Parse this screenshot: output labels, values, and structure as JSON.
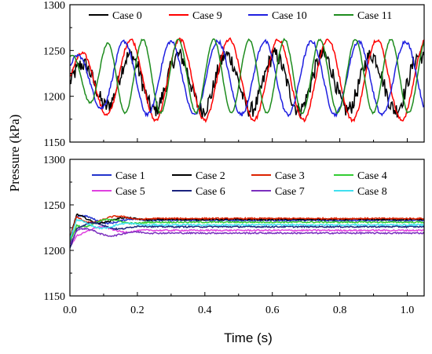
{
  "chart_data": [
    {
      "type": "line",
      "panel": "top",
      "ylabel": "Pressure (kPa)",
      "xlabel": "",
      "xlim": [
        0.0,
        1.05
      ],
      "ylim": [
        1150,
        1300
      ],
      "yticks": [
        1150,
        1200,
        1250,
        1300
      ],
      "xticks": [],
      "legend_position": "top",
      "grid": false,
      "series": [
        {
          "name": "Case 0",
          "color": "#000000",
          "mean": 1215,
          "amp": 30,
          "period": 0.143,
          "phase": 0.0,
          "noise": 9
        },
        {
          "name": "Case 9",
          "color": "#ff0000",
          "mean": 1218,
          "amp": 44,
          "period": 0.146,
          "phase": 0.1,
          "noise": 2
        },
        {
          "name": "Case 10",
          "color": "#1f1fe0",
          "mean": 1220,
          "amp": 40,
          "period": 0.139,
          "phase": 0.6,
          "noise": 2
        },
        {
          "name": "Case 11",
          "color": "#1e8c1e",
          "mean": 1222,
          "amp": 40,
          "period": 0.105,
          "phase": 1.2,
          "noise": 1
        }
      ]
    },
    {
      "type": "line",
      "panel": "bottom",
      "ylabel": "Pressure (kPa)",
      "xlabel": "Time (s)",
      "xlim": [
        0.0,
        1.05
      ],
      "ylim": [
        1150,
        1300
      ],
      "yticks": [
        1150,
        1200,
        1250,
        1300
      ],
      "xticks": [
        0.0,
        0.2,
        0.4,
        0.6,
        0.8,
        1.0
      ],
      "xtick_labels": [
        "0.0",
        "0.2",
        "0.4",
        "0.6",
        "0.8",
        "1.0"
      ],
      "legend_position": "top",
      "grid": false,
      "series": [
        {
          "name": "Case 1",
          "color": "#2233cc",
          "steady": 1233
        },
        {
          "name": "Case 2",
          "color": "#000000",
          "steady": 1234
        },
        {
          "name": "Case 3",
          "color": "#dd2200",
          "steady": 1235
        },
        {
          "name": "Case 4",
          "color": "#33cc33",
          "steady": 1231
        },
        {
          "name": "Case 5",
          "color": "#e040e0",
          "steady": 1222
        },
        {
          "name": "Case 6",
          "color": "#1a237e",
          "steady": 1226
        },
        {
          "name": "Case 7",
          "color": "#7b2fbe",
          "steady": 1219
        },
        {
          "name": "Case 8",
          "color": "#40e0f0",
          "steady": 1228
        }
      ]
    }
  ]
}
